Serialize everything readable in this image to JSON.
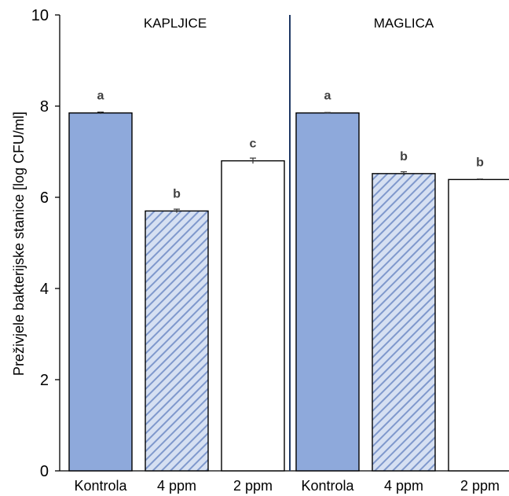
{
  "colors": {
    "kontrola_fill": "#8EA9DB",
    "bar_stroke": "#000000",
    "hatch_bg": "#D6E0F2",
    "hatch_line": "#7F98CC",
    "divider": "#1F3864"
  },
  "chart_data": {
    "type": "bar",
    "ylabel": "Preživjele bakterijske stanice [log CFU/ml]",
    "xlabel": "",
    "ylim": [
      0,
      10
    ],
    "yticks": [
      0,
      2,
      4,
      6,
      8,
      10
    ],
    "grid": false,
    "legend": "none",
    "groups": [
      {
        "name": "KAPLJICE",
        "bars": [
          {
            "category": "Kontrola",
            "value": 7.85,
            "error": 0.02,
            "label": "a",
            "style": "solid"
          },
          {
            "category": "4 ppm",
            "value": 5.7,
            "error": 0.04,
            "label": "b",
            "style": "hatched"
          },
          {
            "category": "2 ppm",
            "value": 6.8,
            "error": 0.06,
            "label": "c",
            "style": "white"
          }
        ]
      },
      {
        "name": "MAGLICA",
        "bars": [
          {
            "category": "Kontrola",
            "value": 7.85,
            "error": 0.01,
            "label": "a",
            "style": "solid"
          },
          {
            "category": "4 ppm",
            "value": 6.52,
            "error": 0.04,
            "label": "b",
            "style": "hatched"
          },
          {
            "category": "2 ppm",
            "value": 6.39,
            "error": 0.01,
            "label": "b",
            "style": "white"
          }
        ]
      }
    ]
  }
}
